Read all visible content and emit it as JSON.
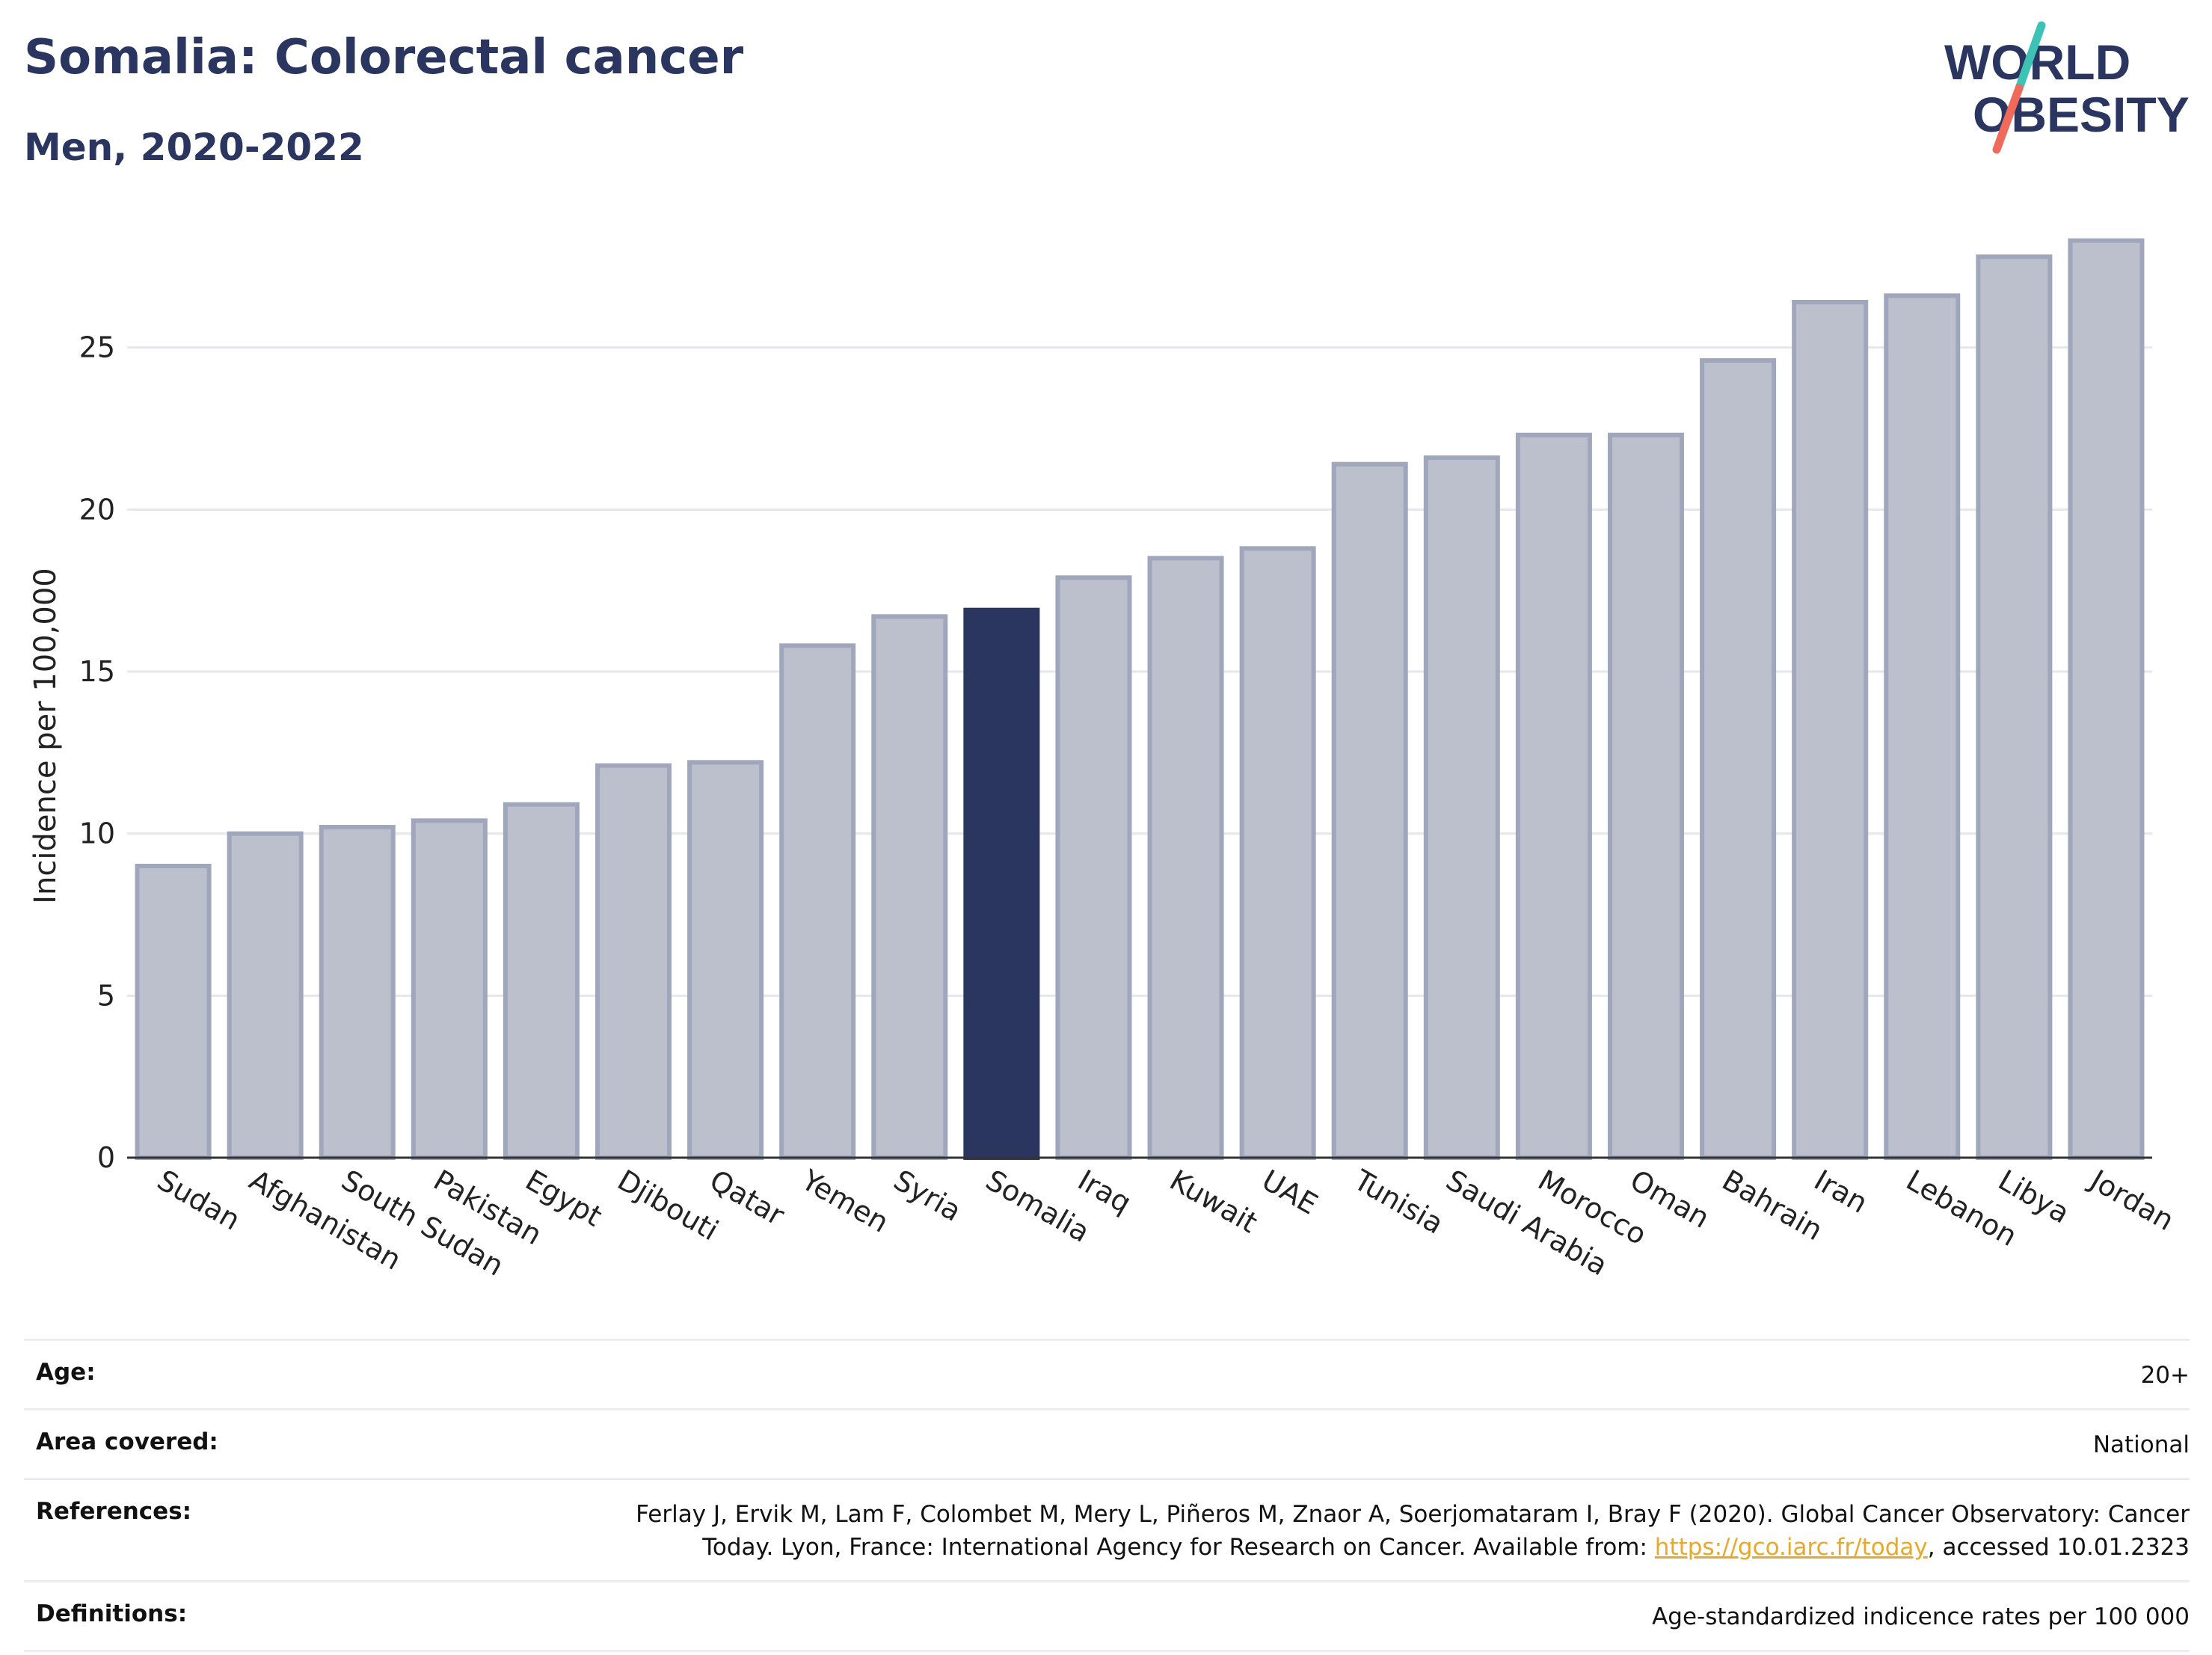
{
  "title": "Somalia: Colorectal cancer",
  "subtitle": "Men, 2020-2022",
  "logo": {
    "line1": "WORLD",
    "line2": "OBESITY",
    "slash_color_top": "#3cc3b6",
    "slash_color_bottom": "#ef6a5a"
  },
  "colors": {
    "highlight": "#2a3560",
    "bar": "#bcc0cd",
    "bar_border": "#a0a6bc",
    "grid": "#e6e6ec",
    "axis": "#333333",
    "link": "#e8a82a"
  },
  "chart_data": {
    "type": "bar",
    "title": "Somalia: Colorectal cancer",
    "subtitle": "Men, 2020-2022",
    "xlabel": "",
    "ylabel": "Incidence per 100,000",
    "ylim": [
      0,
      28.8
    ],
    "yticks": [
      0,
      5,
      10,
      15,
      20,
      25
    ],
    "grid": true,
    "highlight": "Somalia",
    "categories": [
      "Sudan",
      "Afghanistan",
      "South Sudan",
      "Pakistan",
      "Egypt",
      "Djibouti",
      "Qatar",
      "Yemen",
      "Syria",
      "Somalia",
      "Iraq",
      "Kuwait",
      "UAE",
      "Tunisia",
      "Saudi Arabia",
      "Morocco",
      "Oman",
      "Bahrain",
      "Iran",
      "Lebanon",
      "Libya",
      "Jordan"
    ],
    "values": [
      9.0,
      10.0,
      10.2,
      10.4,
      10.9,
      12.1,
      12.2,
      15.8,
      16.7,
      16.9,
      17.9,
      18.5,
      18.8,
      21.4,
      21.6,
      22.3,
      22.3,
      24.6,
      26.4,
      26.6,
      27.8,
      28.3
    ]
  },
  "meta": {
    "age_label": "Age:",
    "age_value": "20+",
    "area_label": "Area covered:",
    "area_value": "National",
    "references_label": "References:",
    "references_text_1": "Ferlay J, Ervik M, Lam F, Colombet M, Mery L, Piñeros M, Znaor A, Soerjomataram I, Bray F (2020). Global Cancer Observatory: Cancer Today. Lyon, France: International Agency for Research on Cancer. Available from: ",
    "references_link": "https://gco.iarc.fr/today",
    "references_text_2": ", accessed 10.01.2323",
    "definitions_label": "Definitions:",
    "definitions_value": "Age-standardized indicence rates per 100 000"
  }
}
